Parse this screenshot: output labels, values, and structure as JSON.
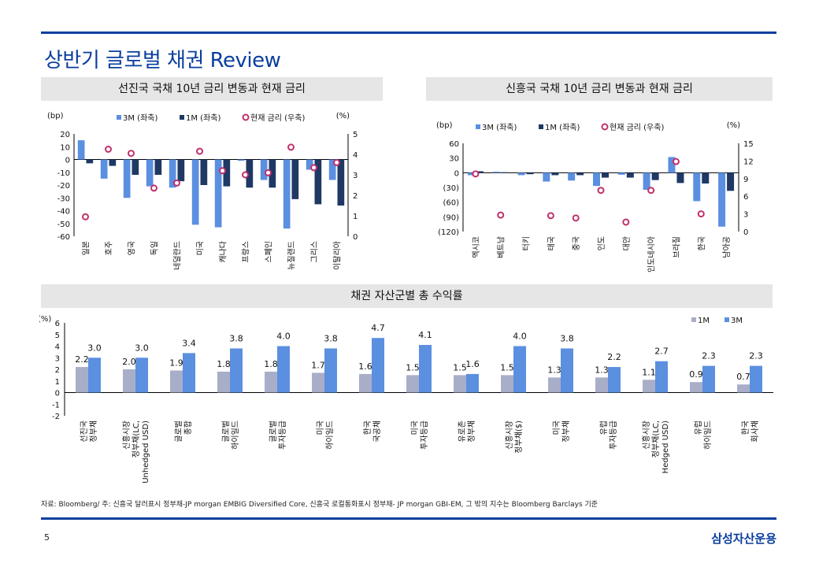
{
  "page": {
    "title": "상반기 글로벌 채권 Review",
    "page_number": "5",
    "brand": "삼성자산운용",
    "footnote": "자료: Bloomberg/ 주: 신흥국 달러표시 정부채-JP morgan EMBIG Diversified Core, 신흥국 로컬통화표시 정부채- JP morgan GBI-EM, 그 밖의 지수는 Bloomberg Barclays 기준",
    "colors": {
      "brand": "#0b3f9e",
      "bar3m": "#5b8fe0",
      "bar1m_dark": "#1f3864",
      "bar1m_light": "#a9aec8",
      "marker": "#c0306c"
    }
  },
  "chart_data": [
    {
      "id": "developed",
      "type": "bar",
      "title": "선진국 국채 10년 금리 변동과 현재 금리",
      "ylabel_left": "(bp)",
      "ylabel_right": "(%)",
      "ylim": [
        -60,
        20
      ],
      "y_ticks": [
        "20",
        "10",
        "0",
        "-10",
        "-20",
        "-30",
        "-40",
        "-50",
        "-60"
      ],
      "y2lim": [
        0,
        5
      ],
      "y2_ticks": [
        "5",
        "4",
        "3",
        "2",
        "1",
        "0"
      ],
      "legend": {
        "s3m": "3M (좌축)",
        "s1m": "1M (좌축)",
        "rate": "현재 금리 (우축)"
      },
      "categories": [
        "일본",
        "호주",
        "영국",
        "독일",
        "네덜란드",
        "미국",
        "캐나다",
        "프랑스",
        "스페인",
        "뉴질랜드",
        "그리스",
        "이탈리아"
      ],
      "series": [
        {
          "name": "3M (좌축)",
          "values": [
            15,
            -15,
            -30,
            -21,
            -22,
            -51,
            -53,
            -1,
            -16,
            -54,
            -8,
            -16
          ]
        },
        {
          "name": "1M (좌축)",
          "values": [
            -3,
            -5,
            -12,
            -12,
            -17,
            -20,
            -21,
            -22,
            -22,
            -31,
            -35,
            -36
          ]
        },
        {
          "name": "현재 금리 (우축)",
          "axis": "right",
          "values": [
            0.95,
            4.25,
            4.05,
            2.35,
            2.6,
            4.15,
            3.2,
            3.0,
            3.1,
            4.35,
            3.35,
            3.6
          ]
        }
      ]
    },
    {
      "id": "emerging",
      "type": "bar",
      "title": "신흥국 국채 10년 금리 변동과 현재 금리",
      "ylabel_left": "(bp)",
      "ylabel_right": "(%)",
      "ylim": [
        -120,
        60
      ],
      "y_ticks": [
        "60",
        "30",
        "0",
        "(30)",
        "(60)",
        "(90)",
        "(120)"
      ],
      "y2lim": [
        0,
        15
      ],
      "y2_ticks": [
        "15",
        "12",
        "9",
        "6",
        "3",
        "0"
      ],
      "legend": {
        "s3m": "3M (좌축)",
        "s1m": "1M (좌축)",
        "rate": "현재 금리 (우축)"
      },
      "categories": [
        "멕시코",
        "베트남",
        "터키",
        "태국",
        "중국",
        "인도",
        "대만",
        "인도네시아",
        "브라질",
        "한국",
        "남아공"
      ],
      "series": [
        {
          "name": "3M (좌축)",
          "values": [
            -5,
            2,
            -5,
            -18,
            -16,
            -27,
            -4,
            -35,
            32,
            -58,
            -110
          ]
        },
        {
          "name": "1M (좌축)",
          "values": [
            3,
            1,
            -3,
            -5,
            -5,
            -10,
            -10,
            -15,
            -21,
            -22,
            -37
          ]
        },
        {
          "name": "현재 금리 (우축)",
          "axis": "right",
          "values": [
            9.8,
            2.8,
            null,
            2.7,
            2.3,
            7.0,
            1.6,
            7.0,
            11.9,
            3.0,
            null
          ]
        }
      ]
    },
    {
      "id": "returns",
      "type": "bar",
      "title": "채권 자산군별 총 수익률",
      "ylabel": "(%)",
      "ylim": [
        -2,
        6
      ],
      "y_ticks": [
        "6",
        "5",
        "4",
        "3",
        "2",
        "1",
        "0",
        "-1",
        "-2"
      ],
      "legend": {
        "s1m": "1M",
        "s3m": "3M"
      },
      "categories": [
        "선진국\n정부채",
        "신흥시장\n정부채(LC,\nUnhedged USD)",
        "글로벌\n종합",
        "글로벌\n하이일드",
        "글로벌\n투자등급",
        "미국\n하이일드",
        "한국\n국공채",
        "미국\n투자등급",
        "유로존\n정부채",
        "신흥시장\n정부채($)",
        "미국\n정부채",
        "유럽\n투자등급",
        "신흥시장\n정부채(LC,\nHedged USD)",
        "유럽\n하이일드",
        "한국\n회사채"
      ],
      "series": [
        {
          "name": "1M",
          "values": [
            2.2,
            2.0,
            1.9,
            1.8,
            1.8,
            1.7,
            1.6,
            1.5,
            1.5,
            1.5,
            1.3,
            1.3,
            1.1,
            0.9,
            0.7
          ]
        },
        {
          "name": "3M",
          "values": [
            3.0,
            3.0,
            3.4,
            3.8,
            4.0,
            3.8,
            4.7,
            4.1,
            1.6,
            4.0,
            3.8,
            2.2,
            2.7,
            2.3,
            2.3
          ]
        }
      ]
    }
  ]
}
